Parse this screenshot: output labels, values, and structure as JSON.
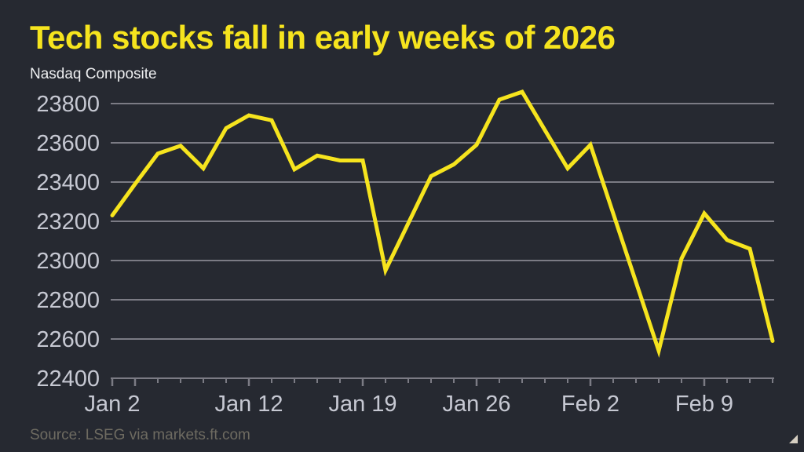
{
  "header": {
    "title": "Tech stocks fall in early weeks of 2026",
    "subtitle": "Nasdaq Composite"
  },
  "footer": {
    "source": "Source: LSEG via markets.ft.com"
  },
  "chart_data": {
    "type": "line",
    "title": "Tech stocks fall in early weeks of 2026",
    "subtitle": "Nasdaq Composite",
    "source": "Source: LSEG via markets.ft.com",
    "series": [
      {
        "name": "Nasdaq Composite",
        "x": [
          "Jan 2",
          "Jan 5",
          "Jan 6",
          "Jan 7",
          "Jan 8",
          "Jan 9",
          "Jan 12",
          "Jan 13",
          "Jan 14",
          "Jan 15",
          "Jan 16",
          "Jan 19",
          "Jan 20",
          "Jan 21",
          "Jan 22",
          "Jan 23",
          "Jan 26",
          "Jan 27",
          "Jan 28",
          "Jan 29",
          "Jan 30",
          "Feb 2",
          "Feb 3",
          "Feb 4",
          "Feb 5",
          "Feb 6",
          "Feb 9",
          "Feb 10",
          "Feb 11",
          "Feb 12"
        ],
        "values": [
          23230,
          23390,
          23545,
          23585,
          23470,
          23675,
          23740,
          23715,
          23465,
          23535,
          23510,
          23510,
          22950,
          23190,
          23430,
          23490,
          23590,
          23820,
          23860,
          23665,
          23470,
          23590,
          23240,
          22890,
          22540,
          23010,
          23240,
          23105,
          23060,
          22590
        ]
      }
    ],
    "ylim": [
      22400,
      23900
    ],
    "yticks": [
      22400,
      22600,
      22800,
      23000,
      23200,
      23400,
      23600,
      23800
    ],
    "x_axis_labels": [
      {
        "label": "Jan 2",
        "index": 0
      },
      {
        "label": "Jan 12",
        "index": 6
      },
      {
        "label": "Jan 19",
        "index": 11
      },
      {
        "label": "Jan 26",
        "index": 16
      },
      {
        "label": "Feb 2",
        "index": 21
      },
      {
        "label": "Feb 9",
        "index": 26
      }
    ],
    "week_tick_indices": [
      0,
      1,
      6,
      11,
      16,
      21,
      26
    ],
    "grid": "horizontal",
    "legend": "none",
    "colors": {
      "background": "#262931",
      "line": "#F6E41E",
      "title": "#F6E41E",
      "subtitle": "#EDEEF0",
      "axis_text": "#C6C8D2",
      "gridline": "#7B7B84",
      "source_text": "#6E6B61",
      "corner_mark": "#D6CFC2"
    }
  }
}
